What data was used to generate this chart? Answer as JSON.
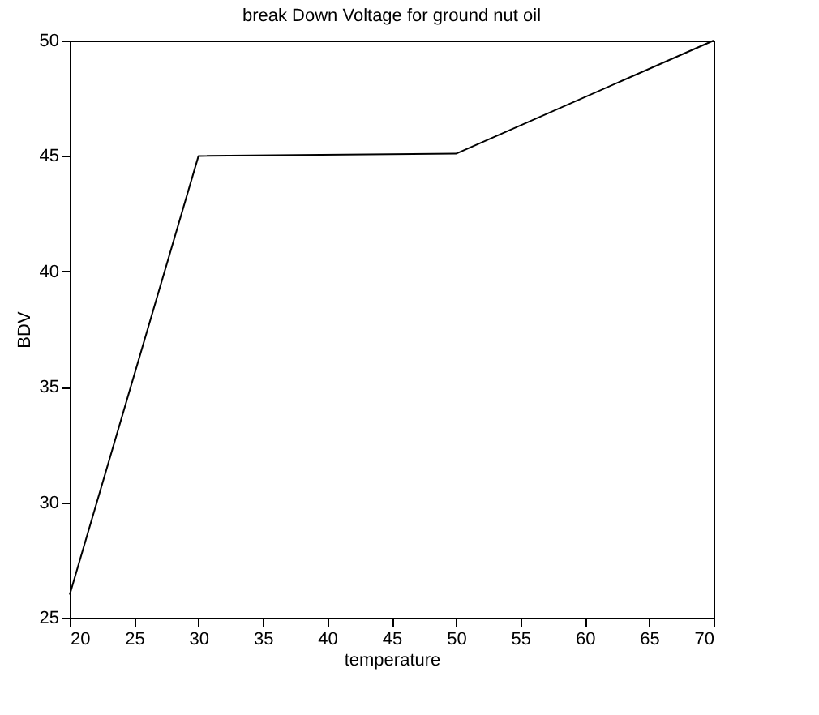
{
  "chart_data": {
    "type": "line",
    "title": "break Down Voltage for ground nut oil",
    "xlabel": "temperature",
    "ylabel": "BDV",
    "x": [
      20,
      30,
      50,
      70
    ],
    "series": [
      {
        "color": "#000000",
        "values": [
          26,
          45,
          45.1,
          50
        ]
      }
    ],
    "xlim": [
      20,
      70
    ],
    "xticks": [
      20,
      25,
      30,
      35,
      40,
      45,
      50,
      55,
      60,
      65,
      70
    ],
    "ylim": [
      25,
      50
    ],
    "yticks": [
      25,
      30,
      35,
      40,
      45,
      50
    ],
    "grid": false,
    "legend": false
  }
}
